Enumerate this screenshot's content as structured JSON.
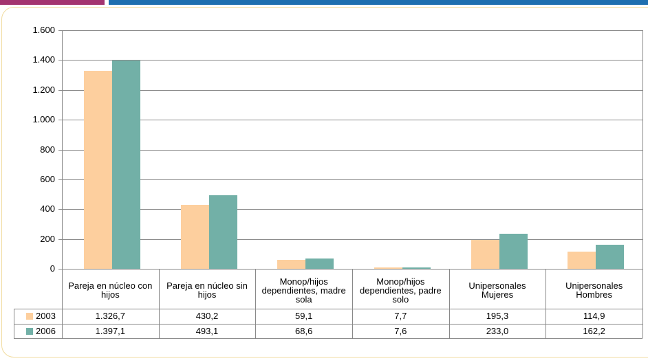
{
  "chart_data": {
    "type": "bar",
    "categories": [
      "Pareja en núcleo con hijos",
      "Pareja en núcleo sin hijos",
      "Monop/hijos dependientes, madre sola",
      "Monop/hijos dependientes, padre solo",
      "Unipersonales Mujeres",
      "Unipersonales Hombres"
    ],
    "series": [
      {
        "name": "2003",
        "color": "#fdcf9e",
        "values": [
          1326.7,
          430.2,
          59.1,
          7.7,
          195.3,
          114.9
        ],
        "value_labels": [
          "1.326,7",
          "430,2",
          "59,1",
          "7,7",
          "195,3",
          "114,9"
        ]
      },
      {
        "name": "2006",
        "color": "#72b0a7",
        "values": [
          1397.1,
          493.1,
          68.6,
          7.6,
          233.0,
          162.2
        ],
        "value_labels": [
          "1.397,1",
          "493,1",
          "68,6",
          "7,6",
          "233,0",
          "162,2"
        ]
      }
    ],
    "ylim": [
      0,
      1600
    ],
    "yticks": [
      0,
      200,
      400,
      600,
      800,
      {
        "value": 1000,
        "label": "1.000"
      },
      {
        "value": 1200,
        "label": "1.200"
      },
      {
        "value": 1400,
        "label": "1.400"
      },
      {
        "value": 1600,
        "label": "1.600"
      }
    ],
    "grid": true
  }
}
